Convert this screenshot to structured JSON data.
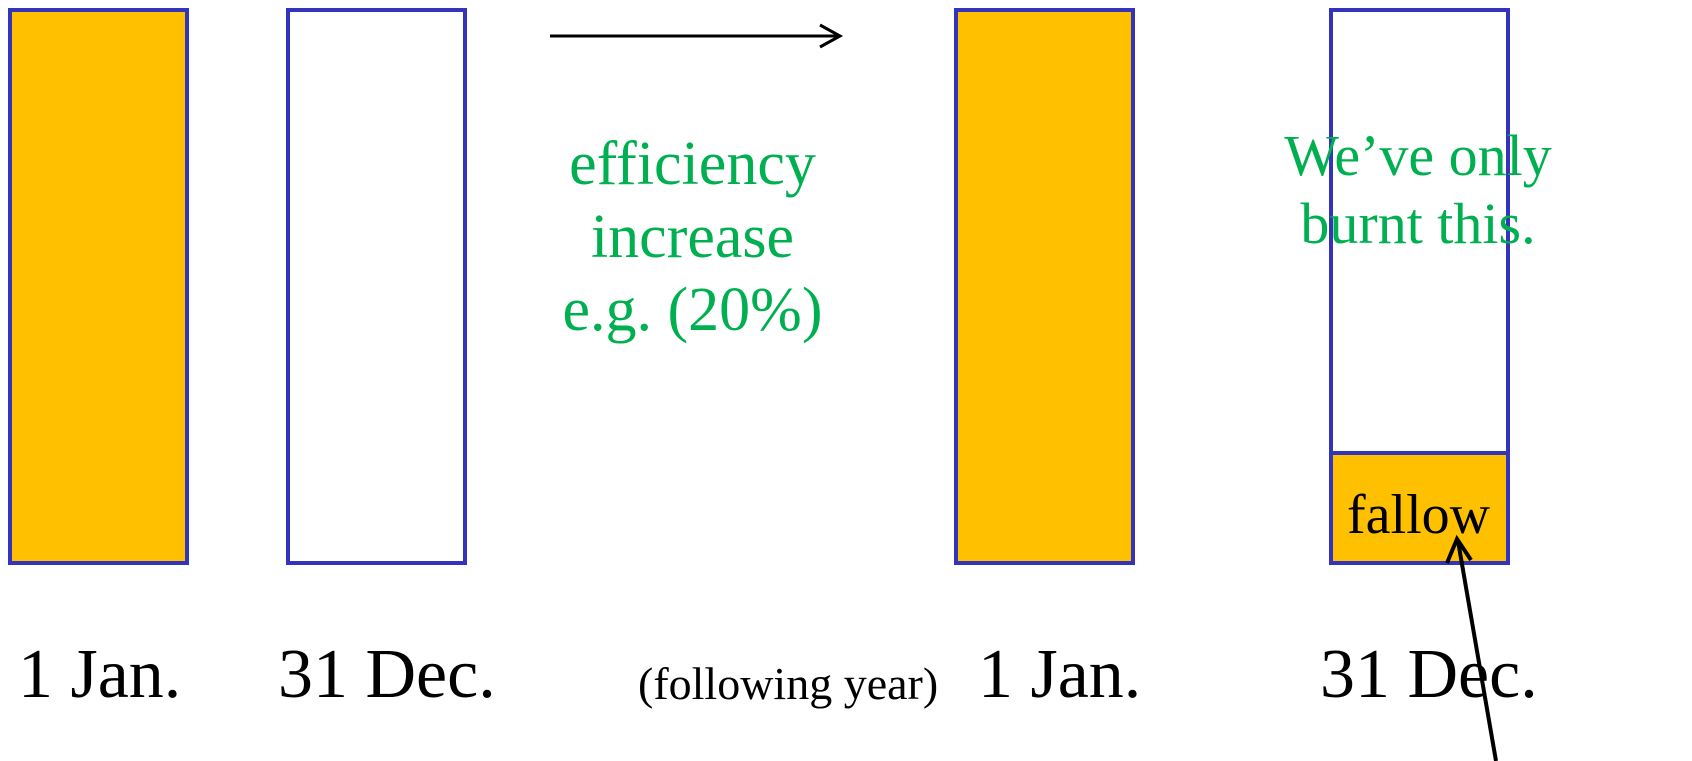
{
  "colors": {
    "fill": "#ffc000",
    "border": "#3333bb",
    "green_text": "#00b050",
    "text": "#000000"
  },
  "bars": [
    {
      "state": "full"
    },
    {
      "state": "empty"
    },
    {
      "state": "full"
    },
    {
      "state": "partial",
      "remaining_fraction": 0.2
    }
  ],
  "labels": {
    "bar1": "1 Jan.",
    "bar2": "31 Dec.",
    "following_year": "(following year)",
    "bar3": "1 Jan.",
    "bar4": "31 Dec."
  },
  "middle_text": [
    "efficiency",
    "increase",
    "e.g. (20%)"
  ],
  "burnt_text": [
    "We’ve only",
    "burnt this."
  ],
  "fallow_label": "fallow"
}
